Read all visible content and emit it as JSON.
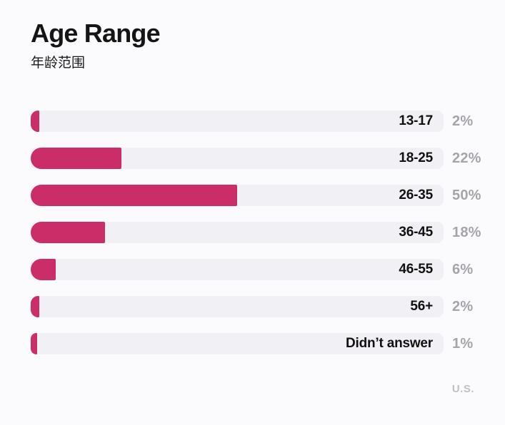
{
  "header": {
    "title": "Age Range",
    "subtitle": "年龄范围"
  },
  "source_label": "U.S.",
  "colors": {
    "background": "#fbfafc",
    "bar_fill": "#cb2d68",
    "bar_track": "#f1f0f5",
    "category_text": "#111111",
    "percent_text": "#a5a4aa",
    "source_text": "#c0bfc7"
  },
  "chart_data": {
    "type": "bar",
    "orientation": "horizontal",
    "title": "Age Range",
    "subtitle": "年龄范围",
    "categories": [
      "13-17",
      "18-25",
      "26-35",
      "36-45",
      "46-55",
      "56+",
      "Didn’t answer"
    ],
    "values": [
      2,
      22,
      50,
      18,
      6,
      2,
      1
    ],
    "unit": "%",
    "value_labels": [
      "2%",
      "22%",
      "50%",
      "18%",
      "6%",
      "2%",
      "1%"
    ],
    "xlim": [
      0,
      100
    ],
    "grid": false,
    "legend": false,
    "annotation": "U.S."
  }
}
